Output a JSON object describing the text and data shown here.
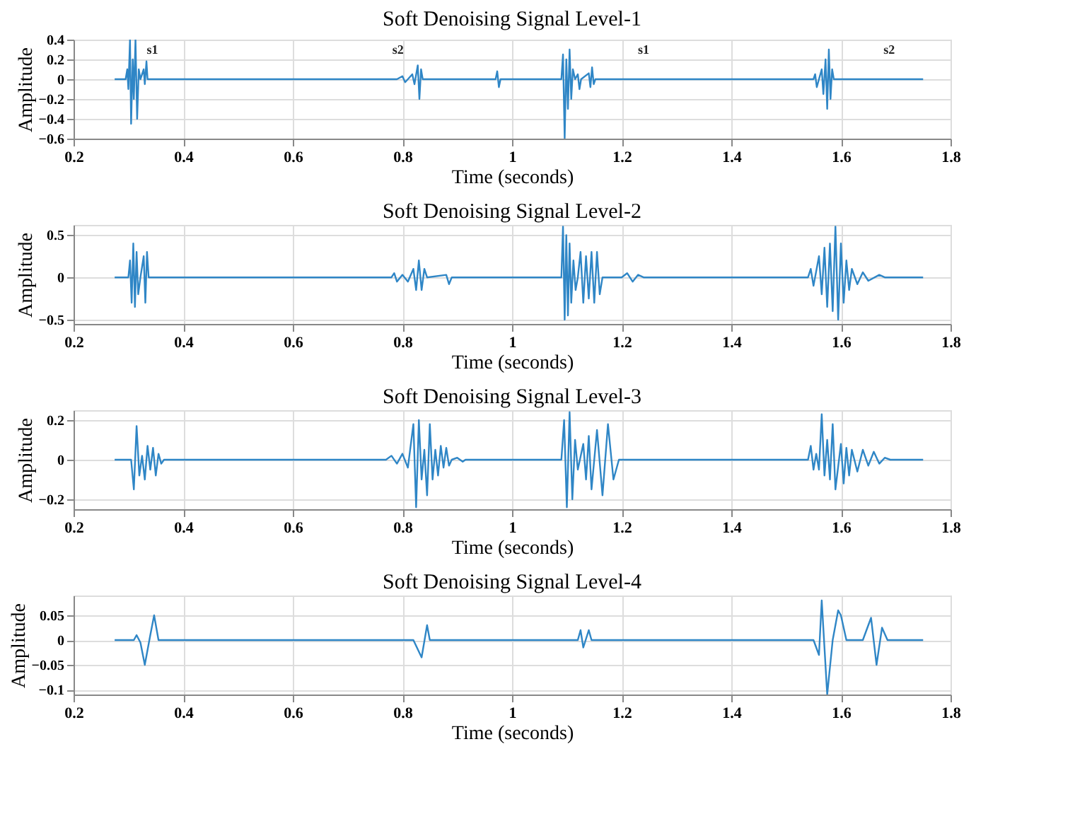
{
  "chart_data": [
    {
      "type": "line",
      "title": "Soft Denoising Signal Level-1",
      "xlabel": "Time (seconds)",
      "ylabel": "Amplitude",
      "xlim": [
        0.2,
        1.8
      ],
      "xticks": [
        0.2,
        0.4,
        0.6,
        0.8,
        1,
        1.2,
        1.4,
        1.6,
        1.8
      ],
      "ylim": [
        -0.6,
        0.4
      ],
      "yticks": [
        -0.6,
        -0.4,
        -0.2,
        0,
        0.2,
        0.4
      ],
      "grid": true,
      "line_style": "solid",
      "annotations": [
        "s1",
        "s2",
        "s1",
        "s2"
      ],
      "series": [
        {
          "color": "#2f86c6",
          "x": [
            0.275,
            0.295,
            0.298,
            0.3,
            0.303,
            0.305,
            0.308,
            0.31,
            0.313,
            0.316,
            0.319,
            0.322,
            0.328,
            0.33,
            0.333,
            0.335,
            0.79,
            0.8,
            0.805,
            0.81,
            0.818,
            0.822,
            0.828,
            0.831,
            0.834,
            0.837,
            0.97,
            0.973,
            0.976,
            0.979,
            1.09,
            1.093,
            1.096,
            1.099,
            1.102,
            1.105,
            1.108,
            1.111,
            1.115,
            1.12,
            1.123,
            1.126,
            1.14,
            1.143,
            1.146,
            1.149,
            1.152,
            1.55,
            1.553,
            1.556,
            1.56,
            1.565,
            1.568,
            1.572,
            1.575,
            1.578,
            1.581,
            1.584,
            1.587,
            1.75
          ],
          "values": [
            0,
            0,
            0.1,
            -0.1,
            0.4,
            -0.45,
            0.2,
            -0.2,
            0.4,
            -0.4,
            0.1,
            0,
            0.1,
            -0.05,
            0.18,
            0,
            0,
            0.03,
            -0.03,
            0,
            0.05,
            -0.05,
            0.14,
            -0.2,
            0.1,
            0,
            0,
            0.08,
            -0.08,
            0,
            0,
            0.25,
            -0.6,
            0.2,
            -0.3,
            0.3,
            -0.2,
            0.1,
            0,
            0.05,
            -0.1,
            0,
            0.06,
            -0.08,
            0.12,
            -0.05,
            0,
            0,
            0.05,
            -0.08,
            0,
            0.1,
            -0.15,
            0.2,
            -0.3,
            0.3,
            -0.2,
            0.1,
            0,
            0
          ]
        }
      ]
    },
    {
      "type": "line",
      "title": "Soft Denoising Signal Level-2",
      "xlabel": "Time (seconds)",
      "ylabel": "Amplitude",
      "xlim": [
        0.2,
        1.8
      ],
      "xticks": [
        0.2,
        0.4,
        0.6,
        0.8,
        1,
        1.2,
        1.4,
        1.6,
        1.8
      ],
      "ylim": [
        -0.55,
        0.62
      ],
      "yticks": [
        -0.5,
        0,
        0.5
      ],
      "grid": true,
      "line_style": "solid",
      "series": [
        {
          "color": "#2f86c6",
          "x": [
            0.275,
            0.3,
            0.303,
            0.306,
            0.309,
            0.312,
            0.315,
            0.318,
            0.322,
            0.328,
            0.331,
            0.334,
            0.337,
            0.78,
            0.785,
            0.79,
            0.8,
            0.81,
            0.82,
            0.825,
            0.83,
            0.835,
            0.84,
            0.845,
            0.88,
            0.885,
            0.89,
            1.09,
            1.093,
            1.096,
            1.099,
            1.102,
            1.105,
            1.108,
            1.112,
            1.116,
            1.12,
            1.125,
            1.13,
            1.135,
            1.14,
            1.145,
            1.15,
            1.155,
            1.16,
            1.165,
            1.2,
            1.21,
            1.22,
            1.23,
            1.24,
            1.54,
            1.545,
            1.55,
            1.56,
            1.565,
            1.57,
            1.575,
            1.58,
            1.585,
            1.59,
            1.595,
            1.6,
            1.605,
            1.61,
            1.615,
            1.62,
            1.63,
            1.64,
            1.65,
            1.67,
            1.68,
            1.75
          ],
          "values": [
            0,
            0,
            0.2,
            -0.3,
            0.4,
            -0.35,
            0.3,
            -0.2,
            0,
            0.25,
            -0.3,
            0.3,
            0,
            0,
            0.05,
            -0.05,
            0.03,
            -0.05,
            0.1,
            -0.15,
            0.2,
            -0.15,
            0.1,
            0,
            0.03,
            -0.08,
            0,
            0,
            0.6,
            -0.5,
            0.5,
            -0.45,
            0.4,
            -0.3,
            0.2,
            -0.15,
            0,
            0.3,
            -0.3,
            0.25,
            -0.25,
            0.3,
            -0.3,
            0.3,
            -0.2,
            0,
            0,
            0.05,
            -0.05,
            0.03,
            0,
            0,
            0.1,
            -0.1,
            0.25,
            -0.2,
            0.35,
            -0.35,
            0.4,
            -0.4,
            0.6,
            -0.5,
            0.4,
            -0.3,
            0.2,
            -0.15,
            0.1,
            -0.08,
            0.06,
            -0.04,
            0.03,
            0,
            0
          ]
        }
      ]
    },
    {
      "type": "line",
      "title": "Soft Denoising Signal Level-3",
      "xlabel": "Time (seconds)",
      "ylabel": "Amplitude",
      "xlim": [
        0.2,
        1.8
      ],
      "xticks": [
        0.2,
        0.4,
        0.6,
        0.8,
        1,
        1.2,
        1.4,
        1.6,
        1.8
      ],
      "ylim": [
        -0.25,
        0.25
      ],
      "yticks": [
        -0.2,
        0,
        0.2
      ],
      "grid": true,
      "line_style": "solid",
      "series": [
        {
          "color": "#2f86c6",
          "x": [
            0.275,
            0.305,
            0.31,
            0.315,
            0.32,
            0.325,
            0.33,
            0.335,
            0.34,
            0.345,
            0.35,
            0.355,
            0.36,
            0.365,
            0.77,
            0.78,
            0.79,
            0.8,
            0.81,
            0.82,
            0.825,
            0.83,
            0.835,
            0.84,
            0.845,
            0.85,
            0.855,
            0.86,
            0.865,
            0.87,
            0.875,
            0.88,
            0.885,
            0.89,
            0.9,
            0.91,
            0.915,
            1.09,
            1.095,
            1.1,
            1.105,
            1.11,
            1.115,
            1.12,
            1.13,
            1.135,
            1.14,
            1.145,
            1.155,
            1.165,
            1.175,
            1.185,
            1.195,
            1.54,
            1.545,
            1.55,
            1.555,
            1.56,
            1.565,
            1.57,
            1.575,
            1.58,
            1.585,
            1.59,
            1.6,
            1.605,
            1.61,
            1.615,
            1.62,
            1.63,
            1.64,
            1.65,
            1.66,
            1.67,
            1.68,
            1.69,
            1.75
          ],
          "values": [
            0,
            0,
            -0.15,
            0.17,
            -0.08,
            0.02,
            -0.1,
            0.07,
            -0.05,
            0.06,
            -0.08,
            0.03,
            -0.02,
            0,
            0,
            0.02,
            -0.02,
            0.03,
            -0.04,
            0.18,
            -0.24,
            0.2,
            -0.1,
            0.05,
            -0.18,
            0.18,
            -0.1,
            0.05,
            -0.08,
            0.07,
            -0.04,
            0.06,
            -0.03,
            0,
            0.01,
            -0.01,
            0,
            0,
            0.2,
            -0.24,
            0.24,
            -0.2,
            0.1,
            -0.05,
            0.08,
            -0.1,
            0.12,
            -0.15,
            0.15,
            -0.18,
            0.18,
            -0.1,
            0,
            0,
            0.07,
            -0.05,
            0.03,
            -0.05,
            0.23,
            -0.08,
            0.1,
            -0.1,
            0.18,
            -0.15,
            0.08,
            -0.12,
            0.06,
            -0.08,
            0.05,
            -0.06,
            0.05,
            -0.03,
            0.04,
            -0.02,
            0.01,
            0,
            0
          ]
        }
      ]
    },
    {
      "type": "line",
      "title": "Soft Denoising Signal Level-4",
      "xlabel": "Time (seconds)",
      "ylabel": "Amplitude",
      "xlim": [
        0.2,
        1.8
      ],
      "xticks": [
        0.2,
        0.4,
        0.6,
        0.8,
        1,
        1.2,
        1.4,
        1.6,
        1.8
      ],
      "ylim": [
        -0.11,
        0.09
      ],
      "yticks": [
        -0.1,
        -0.05,
        0,
        0.05
      ],
      "grid": true,
      "line_style": "solid",
      "series": [
        {
          "color": "#2f86c6",
          "x": [
            0.275,
            0.31,
            0.315,
            0.322,
            0.33,
            0.34,
            0.347,
            0.355,
            0.82,
            0.835,
            0.845,
            0.85,
            1.12,
            1.125,
            1.13,
            1.14,
            1.145,
            1.55,
            1.56,
            1.565,
            1.575,
            1.585,
            1.595,
            1.6,
            1.61,
            1.64,
            1.655,
            1.665,
            1.675,
            1.685,
            1.75
          ],
          "values": [
            0,
            0,
            0.01,
            -0.005,
            -0.05,
            0.01,
            0.05,
            0,
            0,
            -0.035,
            0.03,
            0,
            0,
            0.02,
            -0.015,
            0.02,
            0,
            0,
            -0.03,
            0.08,
            -0.11,
            0,
            0.06,
            0.05,
            0,
            0,
            0.045,
            -0.05,
            0.025,
            0,
            0
          ]
        }
      ]
    }
  ]
}
